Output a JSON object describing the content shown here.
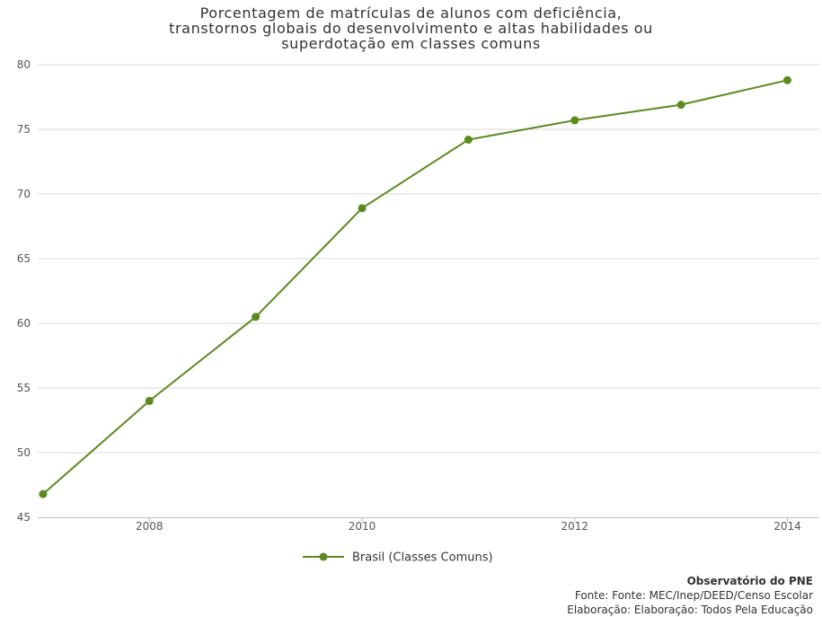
{
  "chart_data": {
    "type": "line",
    "title_lines": [
      "Porcentagem de matrículas de alunos com deficiência,",
      "transtornos globais do desenvolvimento e altas habilidades ou",
      "superdotação em classes comuns"
    ],
    "xlabel": "",
    "ylabel": "",
    "x": [
      2007,
      2008,
      2009,
      2010,
      2011,
      2012,
      2013,
      2014
    ],
    "x_ticks": [
      "2008",
      "2010",
      "2012",
      "2014"
    ],
    "y_ticks": [
      "45",
      "50",
      "55",
      "60",
      "65",
      "70",
      "75",
      "80"
    ],
    "ylim": [
      45,
      80
    ],
    "xlim": [
      2006.95,
      2014.3
    ],
    "grid": "horizontal",
    "legend_position": "bottom-center",
    "series": [
      {
        "name": "Brasil (Classes Comuns)",
        "color": "#5b8a1f",
        "values": [
          46.8,
          54.0,
          60.5,
          68.9,
          74.2,
          75.7,
          76.9,
          78.8
        ]
      }
    ]
  },
  "credits": {
    "organization": "Observatório do PNE",
    "source": "Fonte: Fonte: MEC/Inep/DEED/Censo Escolar",
    "elaboration": "Elaboração: Elaboração: Todos Pela Educação"
  }
}
